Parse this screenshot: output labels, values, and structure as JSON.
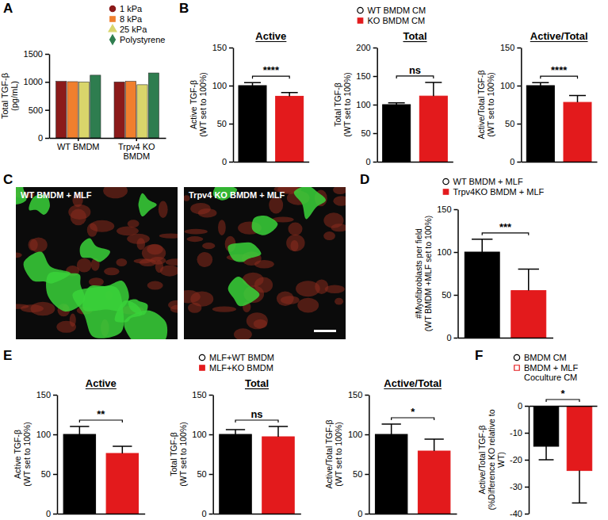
{
  "chart_data": [
    {
      "type": "bar",
      "panel_label": "A",
      "categories": [
        "WT BMDM",
        "Trpv4 KO BMDM"
      ],
      "y_label": "Total TGF-β (pg/mL)",
      "ylim": [
        0,
        1500
      ],
      "yticks": [
        0,
        500,
        1000,
        1500
      ],
      "legend": "top-right",
      "series": [
        {
          "name": "1 kPa",
          "color": "#8b1a1a",
          "marker": "circle",
          "values": [
            1010,
            1000
          ]
        },
        {
          "name": "8 kPa",
          "color": "#f07f2e",
          "marker": "square",
          "values": [
            1005,
            1010
          ]
        },
        {
          "name": "25 kPa",
          "color": "#d9d56b",
          "marker": "triangle",
          "values": [
            1000,
            950
          ]
        },
        {
          "name": "Polystyrene",
          "color": "#2e7d4f",
          "marker": "diamond",
          "values": [
            1120,
            1160
          ]
        }
      ]
    },
    {
      "type": "bar",
      "panel_label": "B",
      "legend": "top",
      "series": [
        {
          "name": "WT BMDM CM",
          "color": "#000000",
          "marker": "open-circle",
          "values": [
            100,
            100,
            100
          ],
          "errors": [
            4,
            3,
            4
          ]
        },
        {
          "name": "KO BMDM CM",
          "color": "#e31a1c",
          "marker": "square",
          "values": [
            86,
            115,
            78
          ],
          "errors": [
            5,
            24,
            9
          ]
        }
      ],
      "subplots": [
        {
          "title": "Active",
          "y_label": "Active TGF-β (WT set to 100%)",
          "ylim": [
            0,
            150
          ],
          "yticks": [
            0,
            50,
            100,
            150
          ],
          "annotation": "****"
        },
        {
          "title": "Total",
          "y_label": "Total TGF-β (WT set to 100%)",
          "ylim": [
            0,
            200
          ],
          "yticks": [
            0,
            50,
            100,
            150,
            200
          ],
          "annotation": "ns"
        },
        {
          "title": "Active/Total",
          "y_label": "Active/Total TGF-β (WT set to 100%)",
          "ylim": [
            0,
            150
          ],
          "yticks": [
            0,
            50,
            100,
            150
          ],
          "annotation": "****"
        }
      ]
    },
    {
      "type": "image",
      "panel_label": "C",
      "images": [
        {
          "label": "WT BMDM + MLF"
        },
        {
          "label": "Trpv4 KO BMDM + MLF"
        }
      ]
    },
    {
      "type": "bar",
      "panel_label": "D",
      "legend": "top",
      "series": [
        {
          "name": "WT BMDM + MLF",
          "color": "#000000",
          "marker": "open-circle",
          "values": [
            100
          ],
          "errors": [
            15
          ]
        },
        {
          "name": "Trpv4KO BMDM + MLF",
          "color": "#e31a1c",
          "marker": "square",
          "values": [
            55
          ],
          "errors": [
            25
          ]
        }
      ],
      "subplots": [
        {
          "y_label": "#Myofibroblasts per field (WT BMDM +MLF set to 100%)",
          "ylim": [
            0,
            150
          ],
          "yticks": [
            0,
            50,
            100,
            150
          ],
          "annotation": "***"
        }
      ]
    },
    {
      "type": "bar",
      "panel_label": "E",
      "legend": "top",
      "series": [
        {
          "name": "MLF+WT BMDM",
          "color": "#000000",
          "marker": "open-circle",
          "values": [
            100,
            100,
            100
          ],
          "errors": [
            10,
            6,
            13
          ]
        },
        {
          "name": "MLF+KO BMDM",
          "color": "#e31a1c",
          "marker": "square",
          "values": [
            76,
            97,
            79
          ],
          "errors": [
            9,
            13,
            15
          ]
        }
      ],
      "subplots": [
        {
          "title": "Active",
          "y_label": "Active TGF-β (WT set to 100%)",
          "ylim": [
            0,
            150
          ],
          "yticks": [
            0,
            50,
            100,
            150
          ],
          "annotation": "**"
        },
        {
          "title": "Total",
          "y_label": "Total TGF-β (WT set to 100%)",
          "ylim": [
            0,
            150
          ],
          "yticks": [
            0,
            50,
            100,
            150
          ],
          "annotation": "ns"
        },
        {
          "title": "Active/Total",
          "y_label": "Active/Total TGF-β (WT set to 100%)",
          "ylim": [
            0,
            150
          ],
          "yticks": [
            0,
            50,
            100,
            150
          ],
          "annotation": "*"
        }
      ]
    },
    {
      "type": "bar",
      "panel_label": "F",
      "legend": "top",
      "series": [
        {
          "name": "BMDM CM",
          "color": "#000000",
          "marker": "open-circle",
          "values": [
            -15
          ],
          "errors": [
            5
          ]
        },
        {
          "name": "BMDM + MLF Coculture CM",
          "color": "#e31a1c",
          "marker": "open-square",
          "values": [
            -24
          ],
          "errors": [
            12
          ]
        }
      ],
      "subplots": [
        {
          "y_label": "Active/Total TGF-β (%Difference KO relative to WT)",
          "ylim": [
            -40,
            0
          ],
          "yticks": [
            -40,
            -30,
            -20,
            -10,
            0
          ],
          "annotation": "*"
        }
      ]
    }
  ]
}
